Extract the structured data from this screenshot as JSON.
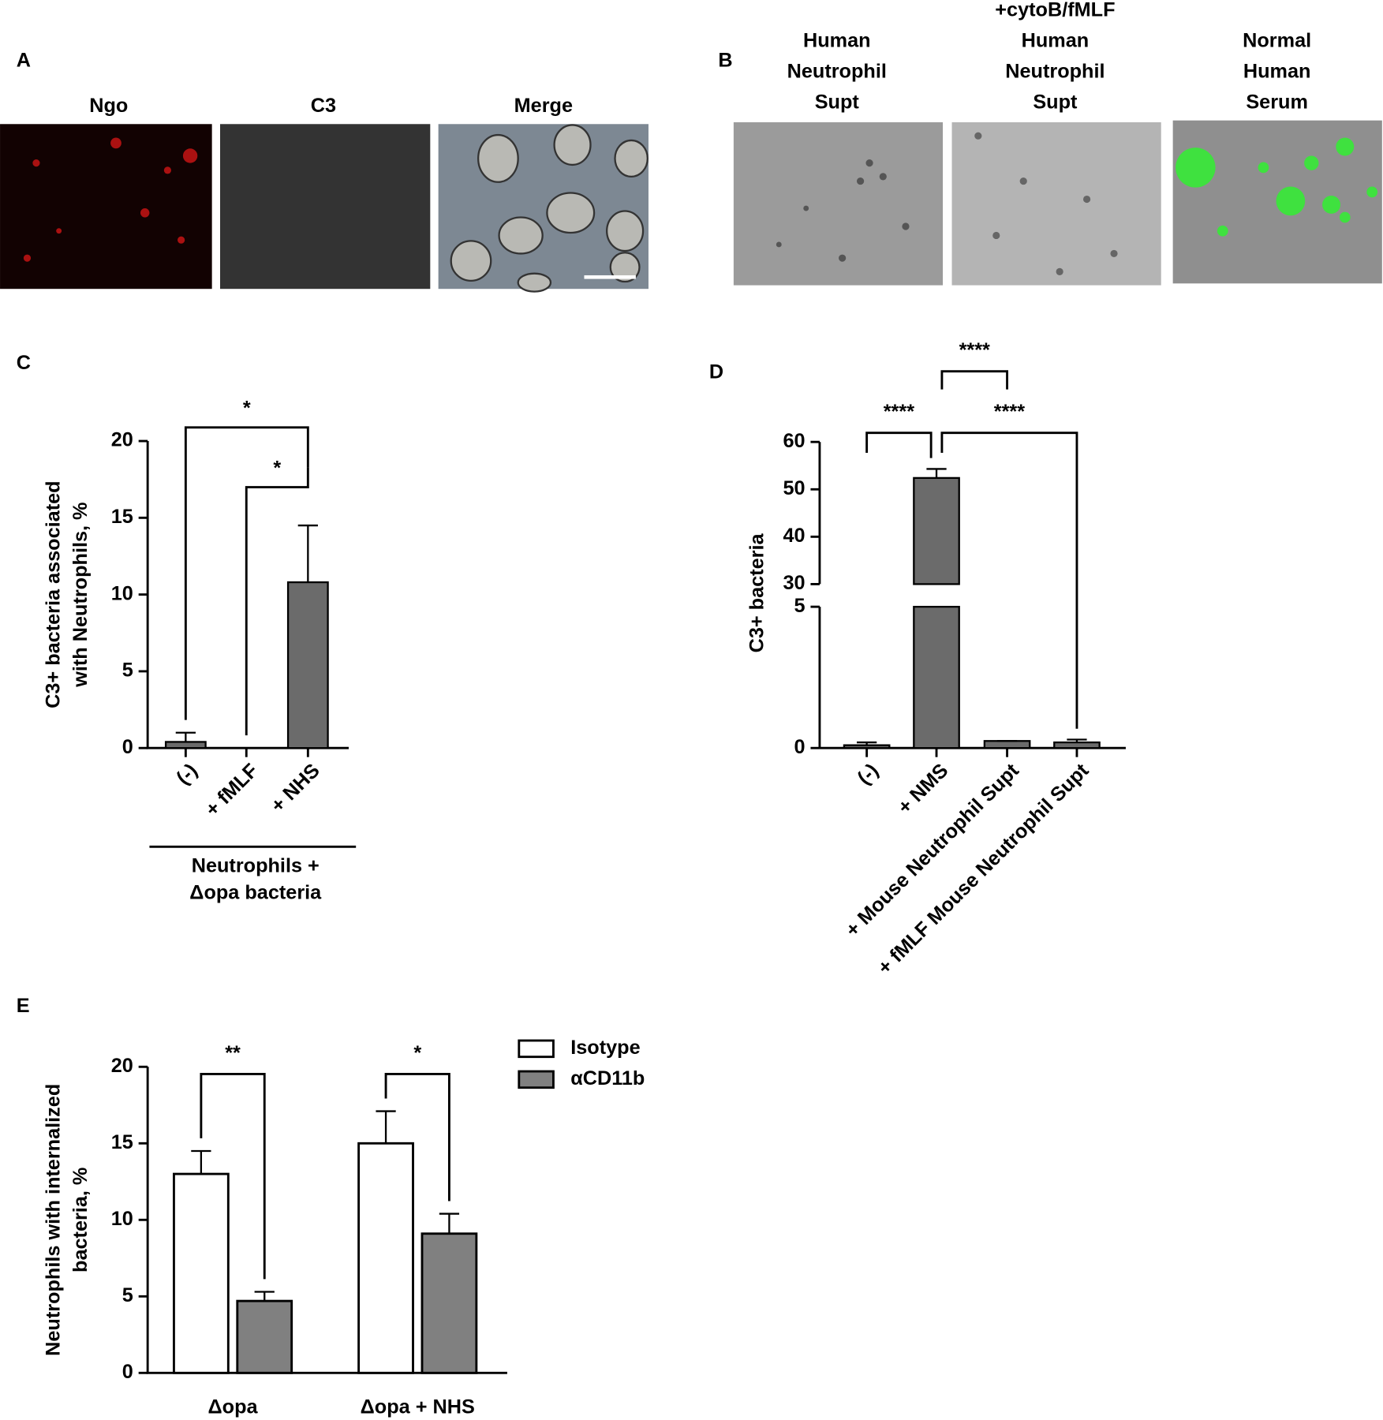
{
  "panel_letters": [
    "A",
    "B",
    "C",
    "D",
    "E"
  ],
  "panel_a": {
    "labels": [
      "Ngo",
      "C3",
      "Merge"
    ]
  },
  "panel_b": {
    "labels": [
      [
        "Human",
        "Neutrophil",
        "Supt"
      ],
      [
        "+cytoB/fMLF",
        "Human",
        "Neutrophil",
        "Supt"
      ],
      [
        "Normal",
        "Human",
        "Serum"
      ]
    ]
  },
  "chart_data": [
    {
      "type": "bar",
      "categories": [
        "(-)",
        "+ fMLF",
        "+ NHS"
      ],
      "values": [
        0.4,
        0,
        10.8
      ],
      "errors": [
        0.6,
        0,
        3.7
      ],
      "color": "#6b6b6b",
      "ylim": [
        0,
        20
      ],
      "yticks": [
        0,
        5,
        10,
        15,
        20
      ],
      "y_label": [
        "C3+ bacteria associated",
        "with Neutrophils, %"
      ],
      "group_label": [
        "Neutrophils +",
        "Δopa bacteria"
      ],
      "comparisons": [
        {
          "pair": [
            0,
            2
          ],
          "label": "*"
        },
        {
          "pair": [
            1,
            2
          ],
          "label": "*"
        }
      ]
    },
    {
      "type": "broken-bar",
      "categories": [
        "(-)",
        "+ NMS",
        "+ Mouse Neutrophil Supt",
        "+ fMLF Mouse Neutrophil Supt"
      ],
      "values": [
        0.1,
        52.4,
        0.25,
        0.2
      ],
      "errors": [
        0.1,
        1.9,
        0,
        0.1
      ],
      "color": "#6b6b6b",
      "segments": [
        {
          "ylim": [
            0,
            5
          ],
          "yticks": [
            0,
            5
          ]
        },
        {
          "ylim": [
            30,
            60
          ],
          "yticks": [
            30,
            40,
            50,
            60
          ]
        }
      ],
      "y_label": [
        "C3+ bacteria"
      ],
      "comparisons": [
        {
          "pair": [
            0,
            1
          ],
          "label": "****"
        },
        {
          "pair": [
            1,
            3
          ],
          "label": "****"
        },
        {
          "pair": [
            1,
            2
          ],
          "label": "****"
        }
      ]
    },
    {
      "type": "grouped-bar",
      "categories": [
        "Δopa",
        "Δopa + NHS"
      ],
      "series": [
        {
          "name": "Isotype",
          "color": "#ffffff",
          "values": [
            13,
            15
          ],
          "errors": [
            1.5,
            2.1
          ]
        },
        {
          "name": "αCD11b",
          "color": "#808080",
          "values": [
            4.7,
            9.1
          ],
          "errors": [
            0.6,
            1.3
          ]
        }
      ],
      "ylim": [
        0,
        20
      ],
      "yticks": [
        0,
        5,
        10,
        15,
        20
      ],
      "y_label": [
        "Neutrophils with internalized",
        "bacteria, %"
      ],
      "comparisons": [
        {
          "group": 0,
          "label": "**"
        },
        {
          "group": 1,
          "label": "*"
        }
      ],
      "legend": "top-right"
    }
  ]
}
